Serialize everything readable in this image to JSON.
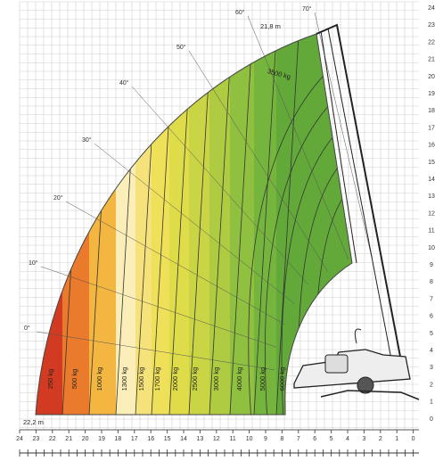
{
  "diagram": {
    "reach_label": "22,2 m",
    "height_label": "21,8 m",
    "top_load_label": "3500 kg",
    "load_labels": [
      "250 kg",
      "500 kg",
      "1000 kg",
      "1300 kg",
      "1500 kg",
      "1700 kg",
      "2000 kg",
      "2500 kg",
      "3000 kg",
      "4000 kg",
      "5000 kg",
      "6000 kg"
    ],
    "angle_labels": [
      "0°",
      "10°",
      "20°",
      "30°",
      "40°",
      "50°",
      "60°",
      "70°"
    ],
    "x_axis_labels": [
      24,
      23,
      22,
      21,
      20,
      19,
      18,
      17,
      16,
      15,
      14,
      13,
      12,
      11,
      10,
      9,
      8,
      7,
      6,
      5,
      4,
      3,
      2,
      1,
      0
    ],
    "y_axis_labels": [
      0,
      1,
      2,
      3,
      4,
      5,
      6,
      7,
      8,
      9,
      10,
      11,
      12,
      13,
      14,
      15,
      16,
      17,
      18,
      19,
      20,
      21,
      22,
      23,
      24
    ]
  }
}
